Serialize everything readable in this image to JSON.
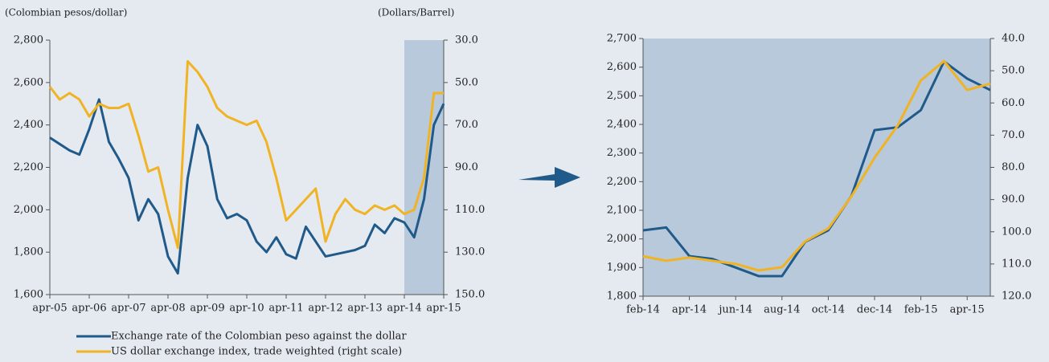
{
  "chart_data": [
    {
      "type": "line",
      "y_label": "(Colombian pesos/dollar)",
      "y2_label": "(Dollars/Barrel)",
      "categories": [
        "apr-05",
        null,
        null,
        null,
        "apr-06",
        null,
        null,
        null,
        "apr-07",
        null,
        null,
        null,
        "apr-08",
        null,
        null,
        null,
        "apr-09",
        null,
        null,
        null,
        "apr-10",
        null,
        null,
        null,
        "apr-11",
        null,
        null,
        null,
        "apr-12",
        null,
        null,
        null,
        "apr-13",
        null,
        null,
        null,
        "apr-14",
        null,
        null,
        null,
        "apr-15"
      ],
      "series": [
        {
          "name": "Exchange rate of the Colombian peso against the dollar",
          "color": "#1f5a8a",
          "values": [
            2340,
            2310,
            2280,
            2260,
            2380,
            2520,
            2320,
            2240,
            2150,
            1950,
            2050,
            1980,
            1780,
            1700,
            2150,
            2400,
            2300,
            2050,
            1960,
            1980,
            1950,
            1850,
            1800,
            1870,
            1790,
            1770,
            1920,
            1850,
            1780,
            1790,
            1800,
            1810,
            1830,
            1930,
            1890,
            1960,
            1940,
            1870,
            2050,
            2400,
            2500
          ]
        },
        {
          "name": "US dollar exchange index, trade weighted (right  scale)",
          "color": "#f0b323",
          "axis": "y2",
          "values": [
            52,
            58,
            55,
            58,
            66,
            60,
            62,
            62,
            60,
            75,
            92,
            90,
            110,
            128,
            40,
            45,
            52,
            62,
            66,
            68,
            70,
            68,
            78,
            95,
            115,
            110,
            105,
            100,
            125,
            112,
            105,
            110,
            112,
            108,
            110,
            108,
            112,
            110,
            95,
            55,
            55
          ]
        }
      ],
      "ylim": [
        1600,
        2800
      ],
      "yticks": [
        {
          "value": 1600,
          "label": "1,600"
        },
        {
          "value": 1800,
          "label": "1,800"
        },
        {
          "value": 2000,
          "label": "2,000"
        },
        {
          "value": 2200,
          "label": "2,200"
        },
        {
          "value": 2400,
          "label": "2,400"
        },
        {
          "value": 2600,
          "label": "2,600"
        },
        {
          "value": 2800,
          "label": "2,800"
        }
      ],
      "y2lim": [
        30,
        150
      ],
      "y2_reversed": true,
      "y2ticks": [
        {
          "value": 30,
          "label": "30.0"
        },
        {
          "value": 50,
          "label": "50.0"
        },
        {
          "value": 70,
          "label": "70.0"
        },
        {
          "value": 90,
          "label": "90.0"
        },
        {
          "value": 110,
          "label": "110.0"
        },
        {
          "value": 130,
          "label": "130.0"
        },
        {
          "value": 150,
          "label": "150.0"
        }
      ],
      "shaded_from": "apr-14",
      "legend": "bottom"
    },
    {
      "type": "line",
      "categories": [
        "feb-14",
        null,
        "apr-14",
        null,
        "jun-14",
        null,
        "aug-14",
        null,
        "oct-14",
        null,
        "dec-14",
        null,
        "feb-15",
        null,
        "apr-15",
        null
      ],
      "series": [
        {
          "color": "#1f5a8a",
          "values": [
            2030,
            2040,
            1940,
            1930,
            1900,
            1870,
            1870,
            1990,
            2030,
            2150,
            2380,
            2390,
            2450,
            2620,
            2560,
            2520
          ]
        },
        {
          "color": "#f0b323",
          "axis": "y2",
          "values": [
            107.6,
            109,
            108,
            109,
            110,
            112,
            111,
            103,
            99,
            89,
            77,
            67,
            53,
            47,
            56,
            54
          ]
        }
      ],
      "ylim": [
        1800,
        2700
      ],
      "yticks": [
        {
          "value": 1800,
          "label": "1,800"
        },
        {
          "value": 1900,
          "label": "1,900"
        },
        {
          "value": 2000,
          "label": "2,000"
        },
        {
          "value": 2100,
          "label": "2,100"
        },
        {
          "value": 2200,
          "label": "2,200"
        },
        {
          "value": 2300,
          "label": "2,300"
        },
        {
          "value": 2400,
          "label": "2,400"
        },
        {
          "value": 2500,
          "label": "2,500"
        },
        {
          "value": 2600,
          "label": "2,600"
        },
        {
          "value": 2700,
          "label": "2,700"
        }
      ],
      "y2lim": [
        40,
        120
      ],
      "y2_reversed": true,
      "y2ticks": [
        {
          "value": 40,
          "label": "40.0"
        },
        {
          "value": 50,
          "label": "50.0"
        },
        {
          "value": 60,
          "label": "60.0"
        },
        {
          "value": 70,
          "label": "70.0"
        },
        {
          "value": 80,
          "label": "80.0"
        },
        {
          "value": 90,
          "label": "90.0"
        },
        {
          "value": 100,
          "label": "100.0"
        },
        {
          "value": 110,
          "label": "110.0"
        },
        {
          "value": 120,
          "label": "120.0"
        }
      ],
      "shaded_from": "feb-14"
    }
  ]
}
